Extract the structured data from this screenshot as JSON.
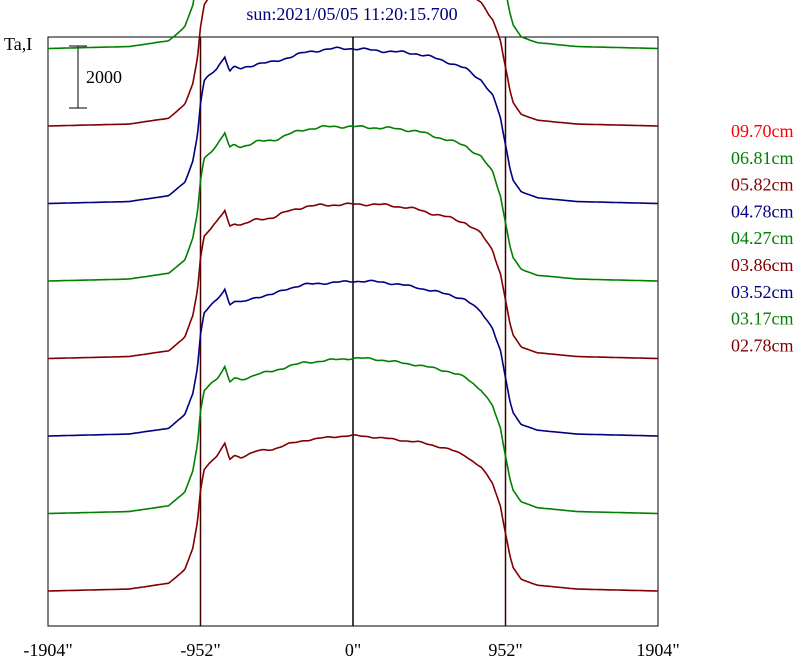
{
  "chart_data": {
    "type": "line",
    "title": "sun:2021/05/05 11:20:15.700",
    "ylabel": "Ta,I",
    "scale_bar_label": "2000",
    "xlim": [
      -1904,
      1904
    ],
    "x_ticks": [
      {
        "value": -1904,
        "label": "-1904\""
      },
      {
        "value": -952,
        "label": "-952\""
      },
      {
        "value": 0,
        "label": "0\""
      },
      {
        "value": 952,
        "label": "952\""
      },
      {
        "value": 1904,
        "label": "1904\""
      }
    ],
    "vertical_lines": [
      -952,
      0,
      952
    ],
    "colors": {
      "red": "#ff0000",
      "green": "#008000",
      "maroon": "#800000",
      "navy": "#000080",
      "axis": "#000000"
    },
    "profile_shape": {
      "x": [
        -1904,
        -1400,
        -1150,
        -1050,
        -1000,
        -970,
        -952,
        -930,
        -900,
        -850,
        -800,
        -770,
        -740,
        -700,
        -600,
        -500,
        -400,
        -300,
        -200,
        -100,
        0,
        100,
        200,
        300,
        400,
        500,
        600,
        700,
        800,
        870,
        920,
        952,
        980,
        1000,
        1050,
        1150,
        1400,
        1904
      ],
      "y": [
        0,
        50,
        200,
        550,
        1100,
        1800,
        2600,
        3150,
        3300,
        3500,
        3800,
        3400,
        3500,
        3450,
        3600,
        3650,
        3800,
        3900,
        3950,
        3980,
        4000,
        3980,
        3950,
        3900,
        3850,
        3750,
        3650,
        3500,
        3200,
        2800,
        2200,
        1500,
        900,
        600,
        300,
        150,
        50,
        0
      ]
    },
    "series": [
      {
        "name": "09.70cm",
        "color": "red",
        "offset": 20000,
        "gain": 1.35,
        "wiggle": 0.6
      },
      {
        "name": "06.81cm",
        "color": "green",
        "offset": 17500,
        "gain": 1.25,
        "wiggle": 0.7
      },
      {
        "name": "05.82cm",
        "color": "maroon",
        "offset": 15000,
        "gain": 1.25,
        "wiggle": 0.55
      },
      {
        "name": "04.78cm",
        "color": "navy",
        "offset": 12500,
        "gain": 1.25,
        "wiggle": 0.5
      },
      {
        "name": "04.27cm",
        "color": "green",
        "offset": 10000,
        "gain": 1.25,
        "wiggle": 0.5
      },
      {
        "name": "03.86cm",
        "color": "maroon",
        "offset": 7500,
        "gain": 1.25,
        "wiggle": 0.45
      },
      {
        "name": "03.52cm",
        "color": "navy",
        "offset": 5000,
        "gain": 1.25,
        "wiggle": 0.4
      },
      {
        "name": "03.17cm",
        "color": "green",
        "offset": 2500,
        "gain": 1.25,
        "wiggle": 0.4
      },
      {
        "name": "02.78cm",
        "color": "maroon",
        "offset": 0,
        "gain": 1.25,
        "wiggle": 0.3
      }
    ]
  }
}
